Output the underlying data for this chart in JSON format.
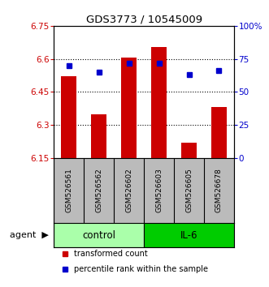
{
  "title": "GDS3773 / 10545009",
  "samples": [
    "GSM526561",
    "GSM526562",
    "GSM526602",
    "GSM526603",
    "GSM526605",
    "GSM526678"
  ],
  "bar_values": [
    6.52,
    6.35,
    6.605,
    6.655,
    6.22,
    6.38
  ],
  "percentile_values": [
    70,
    65,
    72,
    72,
    63,
    66
  ],
  "bar_baseline": 6.15,
  "ylim_left": [
    6.15,
    6.75
  ],
  "ylim_right": [
    0,
    100
  ],
  "yticks_left": [
    6.15,
    6.3,
    6.45,
    6.6,
    6.75
  ],
  "ytick_labels_left": [
    "6.15",
    "6.3",
    "6.45",
    "6.6",
    "6.75"
  ],
  "yticks_right": [
    0,
    25,
    50,
    75,
    100
  ],
  "ytick_labels_right": [
    "0",
    "25",
    "50",
    "75",
    "100%"
  ],
  "bar_color": "#cc0000",
  "percentile_color": "#0000cc",
  "groups": [
    {
      "label": "control",
      "color": "#aaffaa"
    },
    {
      "label": "IL-6",
      "color": "#00cc00"
    }
  ],
  "legend_bar_label": "transformed count",
  "legend_pct_label": "percentile rank within the sample",
  "bg_color": "#ffffff",
  "plot_bg": "#ffffff",
  "tick_area_bg": "#bbbbbb",
  "gridline_ticks": [
    6.3,
    6.45,
    6.6
  ]
}
